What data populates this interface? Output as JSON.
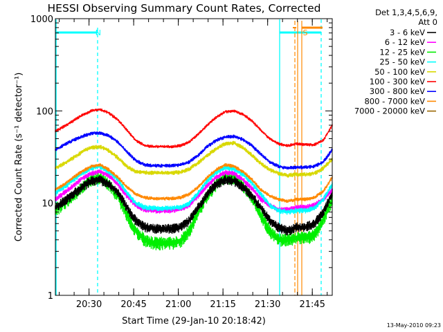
{
  "chart_data": {
    "type": "line",
    "title": "HESSI Observing Summary Count Rates, Corrected",
    "xlabel": "Start Time (29-Jan-10 20:18:42)",
    "ylabel": "Corrected Count Rate (s⁻¹ detector⁻¹)",
    "yscale": "log",
    "ylim": [
      1,
      1000
    ],
    "xlim_minutes_after_start": [
      0,
      93
    ],
    "x_ticks": [
      {
        "label": "20:30",
        "min": 11.3
      },
      {
        "label": "20:45",
        "min": 26.3
      },
      {
        "label": "21:00",
        "min": 41.3
      },
      {
        "label": "21:15",
        "min": 56.3
      },
      {
        "label": "21:30",
        "min": 71.3
      },
      {
        "label": "21:45",
        "min": 86.3
      }
    ],
    "y_ticks": [
      {
        "label": "1",
        "value": 1
      },
      {
        "label": "10",
        "value": 10
      },
      {
        "label": "100",
        "value": 100
      },
      {
        "label": "1000",
        "value": 1000
      }
    ],
    "legend": {
      "position": "right",
      "header": [
        "Det 1,3,4,5,6,9,",
        "Att 0"
      ]
    },
    "x_minutes": [
      0,
      3,
      6,
      9,
      12,
      15,
      18,
      21,
      24,
      27,
      30,
      33,
      36,
      39,
      42,
      45,
      48,
      51,
      54,
      57,
      60,
      63,
      66,
      69,
      72,
      75,
      78,
      81,
      84,
      87,
      90,
      93
    ],
    "series": [
      {
        "name": "3 - 6 keV",
        "color": "#000000",
        "noise": 0.09,
        "values": [
          9,
          10.5,
          12.5,
          15,
          17.5,
          18,
          16,
          13,
          9,
          6.5,
          5.5,
          5.3,
          5.3,
          5.3,
          5.5,
          6.5,
          9,
          12.5,
          16,
          18,
          17.5,
          15,
          12,
          9,
          6.5,
          5.5,
          5,
          5.5,
          5.5,
          6,
          8,
          13
        ]
      },
      {
        "name": "6 - 12 keV",
        "color": "#ff00ff",
        "noise": 0.05,
        "values": [
          11,
          13,
          15.5,
          18.5,
          21,
          22,
          20,
          16,
          12,
          9.5,
          8.5,
          8.3,
          8.3,
          8.3,
          8.6,
          9.5,
          12,
          15.5,
          19,
          21.5,
          21,
          18,
          14.5,
          11,
          9.5,
          8.5,
          8.5,
          9,
          9,
          9.5,
          11,
          14
        ]
      },
      {
        "name": "12 - 25 keV",
        "color": "#00ee00",
        "noise": 0.12,
        "values": [
          8.5,
          10,
          12,
          15,
          18,
          19,
          16,
          12,
          7.5,
          5,
          4,
          3.7,
          3.7,
          3.7,
          3.9,
          5,
          8,
          12,
          16,
          19,
          18.5,
          15.5,
          11.5,
          7.5,
          5,
          4,
          4,
          4.2,
          4.2,
          4.5,
          6.5,
          11
        ]
      },
      {
        "name": "25 - 50 keV",
        "color": "#00ffff",
        "noise": 0.05,
        "values": [
          13,
          15,
          18,
          21,
          24,
          25,
          22,
          18,
          13,
          10,
          9,
          8.8,
          8.8,
          8.8,
          9,
          10,
          13,
          17.5,
          21.5,
          24.5,
          23.5,
          20.5,
          16.5,
          12.5,
          9.5,
          8.3,
          8,
          8.3,
          8.3,
          8.8,
          11,
          16
        ]
      },
      {
        "name": "50 - 100 keV",
        "color": "#d8d800",
        "noise": 0.04,
        "values": [
          24,
          27,
          31,
          36,
          40,
          41,
          37,
          31,
          25,
          22,
          21.5,
          21.3,
          21.3,
          21.3,
          21.6,
          23.5,
          27.5,
          33,
          39,
          44,
          45,
          40,
          33,
          27,
          23,
          21,
          20,
          20.5,
          20.5,
          21,
          24,
          30
        ]
      },
      {
        "name": "100 - 300 keV",
        "color": "#ff0000",
        "noise": 0.03,
        "values": [
          60,
          68,
          78,
          90,
          100,
          104,
          95,
          80,
          62,
          48,
          42,
          41,
          41,
          41,
          42,
          46,
          56,
          70,
          85,
          98,
          100,
          92,
          78,
          62,
          50,
          44,
          42,
          44,
          43,
          43,
          48,
          70
        ]
      },
      {
        "name": "300 - 800 keV",
        "color": "#0000ff",
        "noise": 0.035,
        "values": [
          38,
          43,
          48,
          53,
          57,
          58,
          54,
          46,
          36,
          29,
          26,
          25.5,
          25.5,
          25.5,
          26,
          28,
          33,
          41,
          48,
          52,
          53,
          49,
          42,
          34,
          28,
          25,
          24,
          24.5,
          24.5,
          25,
          28,
          38
        ]
      },
      {
        "name": "800 - 7000 keV",
        "color": "#ff8800",
        "noise": 0.035,
        "values": [
          14,
          16,
          19,
          22,
          25,
          26,
          23,
          19,
          15,
          12.5,
          11.5,
          11.2,
          11.2,
          11.2,
          11.5,
          12.5,
          15,
          19,
          23,
          26,
          25,
          22,
          18,
          14,
          12,
          11,
          10.5,
          11,
          11,
          11.5,
          13.5,
          19
        ]
      },
      {
        "name": "7000 - 20000 keV",
        "color": "#996600",
        "noise": 0.0,
        "values": []
      }
    ],
    "annotations": [
      {
        "text": "N",
        "color": "#00ffff",
        "at_minute": 11.8
      },
      {
        "text": "S",
        "color": "#ff8800",
        "at_minute": 81.5
      }
    ]
  },
  "footer_timestamp": "13-May-2010 09:23"
}
